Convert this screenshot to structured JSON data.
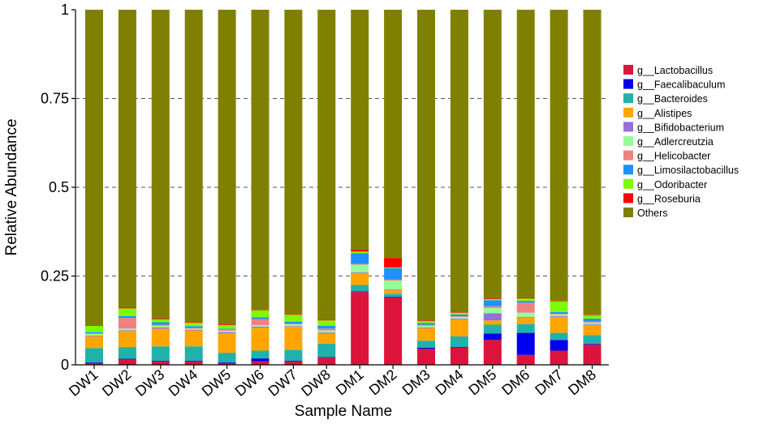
{
  "chart_data": {
    "type": "bar",
    "stacked": true,
    "title": "",
    "xlabel": "Sample Name",
    "ylabel": "Relative Abundance",
    "ylim": [
      0,
      1
    ],
    "yticks": [
      0,
      0.25,
      0.5,
      0.75,
      1
    ],
    "ytick_labels": [
      "0",
      "0.25",
      "0.5",
      "0.75",
      "1"
    ],
    "grid": "dashed horizontal at 0.25, 0.5, 0.75",
    "legend_position": "right",
    "categories": [
      "DW1",
      "DW2",
      "DW3",
      "DW4",
      "DW5",
      "DW6",
      "DW7",
      "DW8",
      "DM1",
      "DM2",
      "DM3",
      "DM4",
      "DM5",
      "DM6",
      "DM7",
      "DM8"
    ],
    "series": [
      {
        "name": "g__Lactobacillus",
        "color": "#dc143c",
        "values": [
          0.005,
          0.015,
          0.01,
          0.01,
          0.005,
          0.01,
          0.01,
          0.02,
          0.205,
          0.19,
          0.045,
          0.048,
          0.07,
          0.028,
          0.04,
          0.057
        ]
      },
      {
        "name": "g__Faecalibaculum",
        "color": "#0000ee",
        "values": [
          0.002,
          0.002,
          0.002,
          0.002,
          0.002,
          0.008,
          0.002,
          0.002,
          0.002,
          0.002,
          0.003,
          0.002,
          0.018,
          0.062,
          0.03,
          0.002
        ]
      },
      {
        "name": "g__Bacteroides",
        "color": "#20b2aa",
        "values": [
          0.04,
          0.033,
          0.04,
          0.04,
          0.027,
          0.022,
          0.03,
          0.038,
          0.018,
          0.008,
          0.02,
          0.03,
          0.025,
          0.025,
          0.02,
          0.025
        ]
      },
      {
        "name": "g__Alistipes",
        "color": "#ffa500",
        "values": [
          0.033,
          0.045,
          0.05,
          0.045,
          0.055,
          0.065,
          0.065,
          0.028,
          0.033,
          0.01,
          0.035,
          0.048,
          0.012,
          0.018,
          0.045,
          0.028
        ]
      },
      {
        "name": "g__Bifidobacterium",
        "color": "#9370db",
        "values": [
          0.002,
          0.002,
          0.003,
          0.002,
          0.003,
          0.003,
          0.002,
          0.003,
          0.002,
          0.002,
          0.002,
          0.002,
          0.02,
          0.002,
          0.002,
          0.002
        ]
      },
      {
        "name": "g__Adlercreutzia",
        "color": "#98fb98",
        "values": [
          0.005,
          0.005,
          0.005,
          0.003,
          0.004,
          0.004,
          0.005,
          0.006,
          0.022,
          0.025,
          0.005,
          0.005,
          0.015,
          0.012,
          0.005,
          0.005
        ]
      },
      {
        "name": "g__Helicobacter",
        "color": "#f08080",
        "values": [
          0.002,
          0.03,
          0.003,
          0.002,
          0.004,
          0.017,
          0.002,
          0.005,
          0.002,
          0.003,
          0.003,
          0.002,
          0.005,
          0.028,
          0.002,
          0.003
        ]
      },
      {
        "name": "g__Limosilactobacillus",
        "color": "#1e90ff",
        "values": [
          0.003,
          0.005,
          0.007,
          0.005,
          0.002,
          0.005,
          0.005,
          0.008,
          0.03,
          0.032,
          0.005,
          0.005,
          0.017,
          0.005,
          0.005,
          0.008
        ]
      },
      {
        "name": "g__Odoribacter",
        "color": "#7cfc00",
        "values": [
          0.018,
          0.022,
          0.008,
          0.01,
          0.01,
          0.02,
          0.02,
          0.015,
          0.005,
          0.002,
          0.005,
          0.005,
          0.003,
          0.007,
          0.03,
          0.01
        ]
      },
      {
        "name": "g__Roseburia",
        "color": "#ff0000",
        "values": [
          0.002,
          0.002,
          0.002,
          0.002,
          0.002,
          0.002,
          0.002,
          0.002,
          0.005,
          0.027,
          0.002,
          0.003,
          0.002,
          0.003,
          0.002,
          0.002
        ]
      },
      {
        "name": "Others",
        "color": "#808000",
        "values": [
          0.888,
          0.839,
          0.87,
          0.879,
          0.886,
          0.844,
          0.857,
          0.873,
          0.676,
          0.699,
          0.875,
          0.85,
          0.813,
          0.81,
          0.819,
          0.858
        ]
      }
    ]
  }
}
